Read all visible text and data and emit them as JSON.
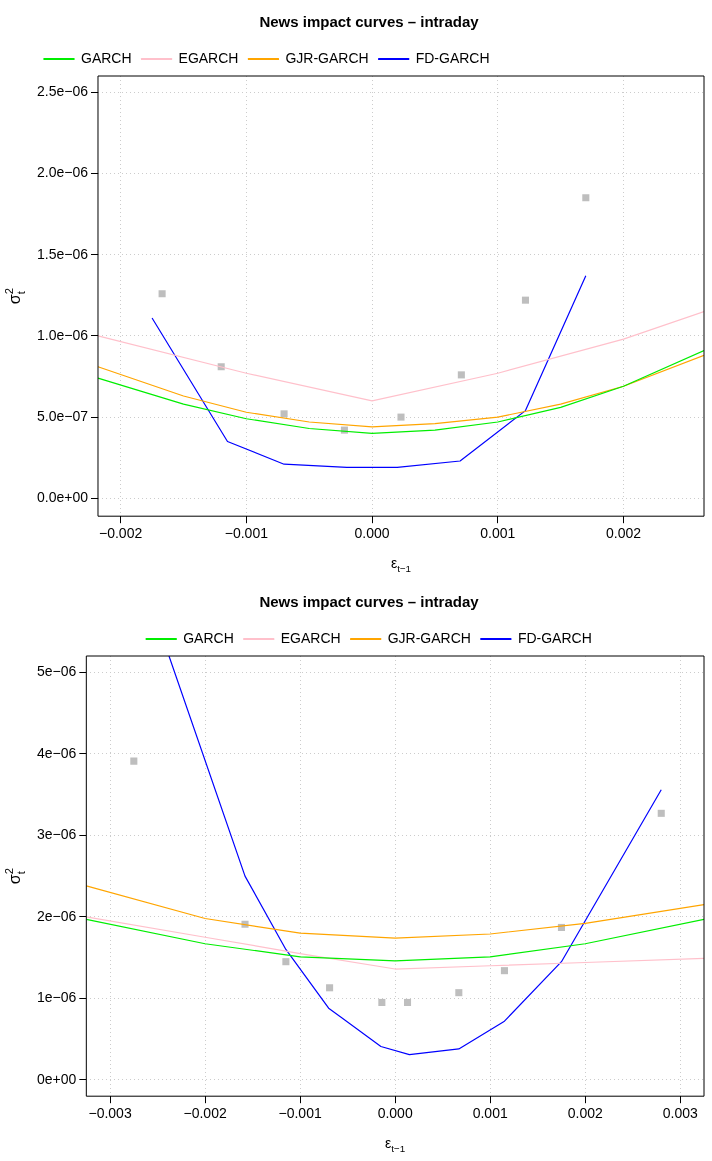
{
  "chart_data": [
    {
      "type": "line",
      "title": "News impact curves – intraday",
      "xlabel": "ε$_{t−1}$",
      "ylabel": "σ$^{2}$$_{t}$",
      "legend": "top left",
      "grid": true,
      "marker": "none",
      "line_style": "solid",
      "xlim": [
        -0.00218,
        0.00264
      ],
      "ylim": [
        -1.1e-07,
        2.6e-06
      ],
      "xticks": [
        {
          "value": -0.002,
          "label": "−0.002"
        },
        {
          "value": -0.001,
          "label": "−0.001"
        },
        {
          "value": 0,
          "label": "0.000"
        },
        {
          "value": 0.001,
          "label": "0.001"
        },
        {
          "value": 0.002,
          "label": "0.002"
        }
      ],
      "yticks": [
        {
          "value": 0,
          "label": "0.0e+00"
        },
        {
          "value": 5e-07,
          "label": "5.0e−07"
        },
        {
          "value": 1e-06,
          "label": "1.0e−06"
        },
        {
          "value": 1.5e-06,
          "label": "1.5e−06"
        },
        {
          "value": 2e-06,
          "label": "2.0e−06"
        },
        {
          "value": 2.5e-06,
          "label": "2.5e−06"
        }
      ],
      "series": [
        {
          "name": "GARCH",
          "color": "#00ee00",
          "x": [
            -0.00218,
            -0.0015,
            -0.001,
            -0.0005,
            0,
            0.0005,
            0.001,
            0.0015,
            0.002,
            0.00264
          ],
          "values": [
            7.4e-07,
            5.8e-07,
            4.9e-07,
            4.3e-07,
            4e-07,
            4.2e-07,
            4.7e-07,
            5.6e-07,
            6.9e-07,
            9.1e-07
          ]
        },
        {
          "name": "EGARCH",
          "color": "#ffc0cb",
          "x": [
            -0.00218,
            -0.001,
            0,
            0.001,
            0.002,
            0.00264
          ],
          "values": [
            1e-06,
            7.7e-07,
            6e-07,
            7.7e-07,
            9.8e-07,
            1.15e-06
          ]
        },
        {
          "name": "GJR-GARCH",
          "color": "#ffa500",
          "x": [
            -0.00218,
            -0.0015,
            -0.001,
            -0.0005,
            0,
            0.0005,
            0.001,
            0.0015,
            0.002,
            0.00264
          ],
          "values": [
            8.1e-07,
            6.3e-07,
            5.3e-07,
            4.7e-07,
            4.4e-07,
            4.6e-07,
            5e-07,
            5.8e-07,
            6.9e-07,
            8.8e-07
          ]
        },
        {
          "name": "FD-GARCH",
          "color": "#0000ff",
          "x": [
            -0.00175,
            -0.00115,
            -0.0007,
            -0.0002,
            0.0002,
            0.0007,
            0.00122,
            0.0017
          ],
          "values": [
            1.11e-06,
            3.5e-07,
            2.1e-07,
            1.9e-07,
            1.9e-07,
            2.3e-07,
            5.4e-07,
            1.37e-06
          ]
        },
        {
          "type": "scatter",
          "marker": "square",
          "color": "#bebebe",
          "x": [
            -0.00167,
            -0.0012,
            -0.0007,
            -0.00022,
            0.00023,
            0.00071,
            0.00122,
            0.0017
          ],
          "values": [
            1.26e-06,
            8.1e-07,
            5.2e-07,
            4.2e-07,
            5e-07,
            7.6e-07,
            1.22e-06,
            1.85e-06
          ]
        }
      ]
    },
    {
      "type": "line",
      "title": "News impact curves – intraday",
      "xlabel": "ε$_{t−1}$",
      "ylabel": "σ$^{2}$$_{t}$",
      "legend": "top",
      "grid": true,
      "marker": "none",
      "line_style": "solid",
      "xlim": [
        -0.00325,
        0.00325
      ],
      "ylim": [
        -2e-07,
        5.2e-06
      ],
      "xticks": [
        {
          "value": -0.003,
          "label": "−0.003"
        },
        {
          "value": -0.002,
          "label": "−0.002"
        },
        {
          "value": -0.001,
          "label": "−0.001"
        },
        {
          "value": 0,
          "label": "0.000"
        },
        {
          "value": 0.001,
          "label": "0.001"
        },
        {
          "value": 0.002,
          "label": "0.002"
        },
        {
          "value": 0.003,
          "label": "0.003"
        }
      ],
      "yticks": [
        {
          "value": 0,
          "label": "0e+00"
        },
        {
          "value": 1e-06,
          "label": "1e−06"
        },
        {
          "value": 2e-06,
          "label": "2e−06"
        },
        {
          "value": 3e-06,
          "label": "3e−06"
        },
        {
          "value": 4e-06,
          "label": "4e−06"
        },
        {
          "value": 5e-06,
          "label": "5e−06"
        }
      ],
      "series": [
        {
          "name": "GARCH",
          "color": "#00ee00",
          "x": [
            -0.00325,
            -0.002,
            -0.001,
            0,
            0.001,
            0.002,
            0.00325
          ],
          "values": [
            1.97e-06,
            1.67e-06,
            1.51e-06,
            1.46e-06,
            1.51e-06,
            1.67e-06,
            1.97e-06
          ]
        },
        {
          "name": "EGARCH",
          "color": "#ffc0cb",
          "x": [
            -0.00325,
            -0.002,
            -0.001,
            0,
            0.001,
            0.002,
            0.00325
          ],
          "values": [
            2e-06,
            1.75e-06,
            1.55e-06,
            1.36e-06,
            1.4e-06,
            1.44e-06,
            1.49e-06
          ]
        },
        {
          "name": "GJR-GARCH",
          "color": "#ffa500",
          "x": [
            -0.00325,
            -0.002,
            -0.001,
            0,
            0.001,
            0.002,
            0.00325
          ],
          "values": [
            2.38e-06,
            1.98e-06,
            1.8e-06,
            1.74e-06,
            1.79e-06,
            1.92e-06,
            2.15e-06
          ]
        },
        {
          "name": "FD-GARCH",
          "color": "#0000ff",
          "x": [
            -0.00238,
            -0.00158,
            -0.00115,
            -0.0007,
            -0.00015,
            0.00015,
            0.00067,
            0.00115,
            0.00175,
            0.0028
          ],
          "values": [
            5.2e-06,
            2.5e-06,
            1.6e-06,
            8.8e-07,
            4.1e-07,
            3.1e-07,
            3.8e-07,
            7.2e-07,
            1.45e-06,
            3.56e-06
          ]
        },
        {
          "type": "scatter",
          "marker": "square",
          "color": "#bebebe",
          "x": [
            -0.00275,
            -0.00158,
            -0.00115,
            -0.00069,
            -0.00014,
            0.00013,
            0.00067,
            0.00115,
            0.00175,
            0.0028
          ],
          "values": [
            3.91e-06,
            1.91e-06,
            1.45e-06,
            1.13e-06,
            9.5e-07,
            9.5e-07,
            1.07e-06,
            1.34e-06,
            1.87e-06,
            3.27e-06
          ]
        }
      ]
    }
  ]
}
